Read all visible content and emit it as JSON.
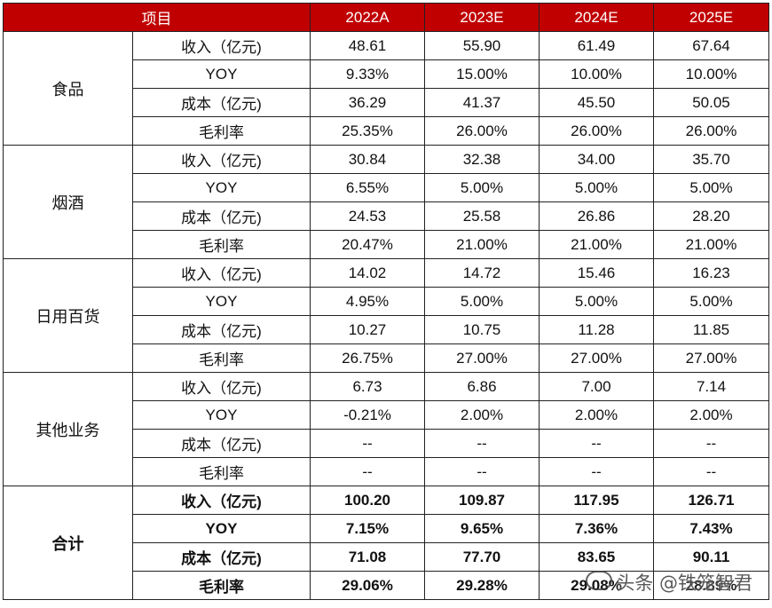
{
  "table": {
    "header": {
      "item": "项目",
      "years": [
        "2022A",
        "2023E",
        "2024E",
        "2025E"
      ]
    },
    "groups": [
      {
        "category": "食品",
        "rows": [
          {
            "label": "收入（亿元)",
            "values": [
              "48.61",
              "55.90",
              "61.49",
              "67.64"
            ]
          },
          {
            "label": "YOY",
            "values": [
              "9.33%",
              "15.00%",
              "10.00%",
              "10.00%"
            ]
          },
          {
            "label": "成本（亿元)",
            "values": [
              "36.29",
              "41.37",
              "45.50",
              "50.05"
            ]
          },
          {
            "label": "毛利率",
            "values": [
              "25.35%",
              "26.00%",
              "26.00%",
              "26.00%"
            ]
          }
        ]
      },
      {
        "category": "烟酒",
        "rows": [
          {
            "label": "收入（亿元)",
            "values": [
              "30.84",
              "32.38",
              "34.00",
              "35.70"
            ]
          },
          {
            "label": "YOY",
            "values": [
              "6.55%",
              "5.00%",
              "5.00%",
              "5.00%"
            ]
          },
          {
            "label": "成本（亿元)",
            "values": [
              "24.53",
              "25.58",
              "26.86",
              "28.20"
            ]
          },
          {
            "label": "毛利率",
            "values": [
              "20.47%",
              "21.00%",
              "21.00%",
              "21.00%"
            ]
          }
        ]
      },
      {
        "category": "日用百货",
        "rows": [
          {
            "label": "收入（亿元)",
            "values": [
              "14.02",
              "14.72",
              "15.46",
              "16.23"
            ]
          },
          {
            "label": "YOY",
            "values": [
              "4.95%",
              "5.00%",
              "5.00%",
              "5.00%"
            ]
          },
          {
            "label": "成本（亿元)",
            "values": [
              "10.27",
              "10.75",
              "11.28",
              "11.85"
            ]
          },
          {
            "label": "毛利率",
            "values": [
              "26.75%",
              "27.00%",
              "27.00%",
              "27.00%"
            ]
          }
        ]
      },
      {
        "category": "其他业务",
        "rows": [
          {
            "label": "收入（亿元)",
            "values": [
              "6.73",
              "6.86",
              "7.00",
              "7.14"
            ]
          },
          {
            "label": "YOY",
            "values": [
              "-0.21%",
              "2.00%",
              "2.00%",
              "2.00%"
            ]
          },
          {
            "label": "成本（亿元)",
            "values": [
              "--",
              "--",
              "--",
              "--"
            ]
          },
          {
            "label": "毛利率",
            "values": [
              "--",
              "--",
              "--",
              "--"
            ]
          }
        ]
      },
      {
        "category": "合计",
        "total": true,
        "rows": [
          {
            "label": "收入（亿元)",
            "values": [
              "100.20",
              "109.87",
              "117.95",
              "126.71"
            ]
          },
          {
            "label": "YOY",
            "values": [
              "7.15%",
              "9.65%",
              "7.36%",
              "7.43%"
            ]
          },
          {
            "label": "成本（亿元)",
            "values": [
              "71.08",
              "77.70",
              "83.65",
              "90.11"
            ]
          },
          {
            "label": "毛利率",
            "values": [
              "29.06%",
              "29.28%",
              "29.08%",
              "28.89%"
            ]
          }
        ]
      }
    ]
  },
  "watermark": {
    "text": "头条 @铁笼智君"
  }
}
